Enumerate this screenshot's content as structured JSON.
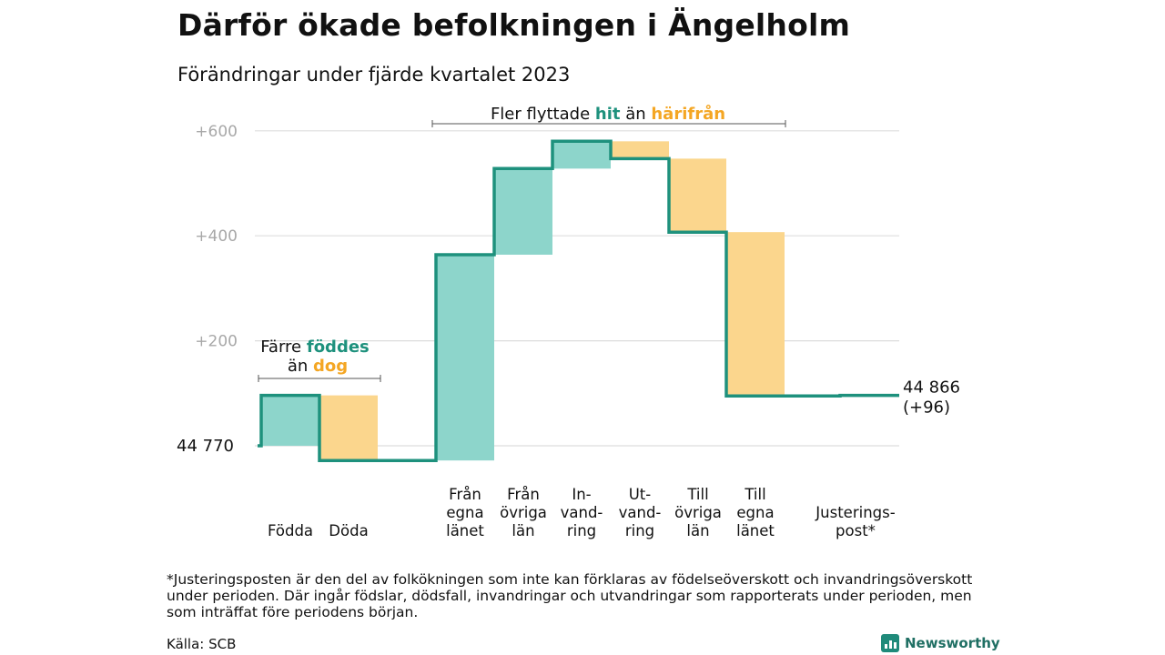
{
  "title": "Därför ökade befolkningen i Ängelholm",
  "subtitle": "Förändringar under fjärde kvartalet 2023",
  "colors": {
    "increase": "#8dd5cb",
    "decrease": "#fbd68d",
    "line": "#1e917d",
    "hit_text": "#1e917d",
    "dog_text": "#f4a623",
    "grid": "#dddddd",
    "tick": "#a8a8a8"
  },
  "chart_data": {
    "type": "waterfall",
    "baseline": 0,
    "ylim": [
      -30,
      600
    ],
    "yticks": [
      {
        "value": 200,
        "label": "+200"
      },
      {
        "value": 400,
        "label": "+400"
      },
      {
        "value": 600,
        "label": "+600"
      }
    ],
    "start_label": "44  770",
    "end_label": [
      "44 866",
      "(+96)"
    ],
    "steps": [
      {
        "name": "Födda",
        "label": [
          "Födda"
        ],
        "change": 96,
        "kind": "increase"
      },
      {
        "name": "Döda",
        "label": [
          "Döda"
        ],
        "change": -124,
        "kind": "decrease"
      },
      {
        "name": "Från egna länet",
        "label": [
          "Från",
          "egna",
          "länet"
        ],
        "change": 392,
        "kind": "increase"
      },
      {
        "name": "Från övriga län",
        "label": [
          "Från",
          "övriga",
          "län"
        ],
        "change": 164,
        "kind": "increase"
      },
      {
        "name": "Invandring",
        "label": [
          "In-",
          "vand-",
          "ring"
        ],
        "change": 52,
        "kind": "increase"
      },
      {
        "name": "Utvandring",
        "label": [
          "Ut-",
          "vand-",
          "ring"
        ],
        "change": -33,
        "kind": "decrease"
      },
      {
        "name": "Till övriga län",
        "label": [
          "Till",
          "övriga",
          "län"
        ],
        "change": -140,
        "kind": "decrease"
      },
      {
        "name": "Till egna länet",
        "label": [
          "Till",
          "egna",
          "länet"
        ],
        "change": -312,
        "kind": "decrease"
      },
      {
        "name": "Justeringspost",
        "label": [
          "Justerings-",
          "post*"
        ],
        "change": 1,
        "kind": "adjustment"
      }
    ],
    "annotations": {
      "births": {
        "line1_a": "Färre",
        "line1_b": "föddes",
        "line2_a": "än",
        "line2_b": "dog"
      },
      "moves": {
        "a": "Fler flyttade",
        "b": "hit",
        "c": "än",
        "d": "härifrån"
      }
    }
  },
  "footnote": [
    "*Justeringsposten är den del av folkökningen som inte kan förklaras av födelseöverskott och invandringsöverskott",
    "under perioden. Där ingår födslar, dödsfall, invandringar och utvandringar som rapporterats under perioden, men",
    "som inträffat före periodens början."
  ],
  "source": "Källa: SCB",
  "logo_text": "Newsworthy"
}
